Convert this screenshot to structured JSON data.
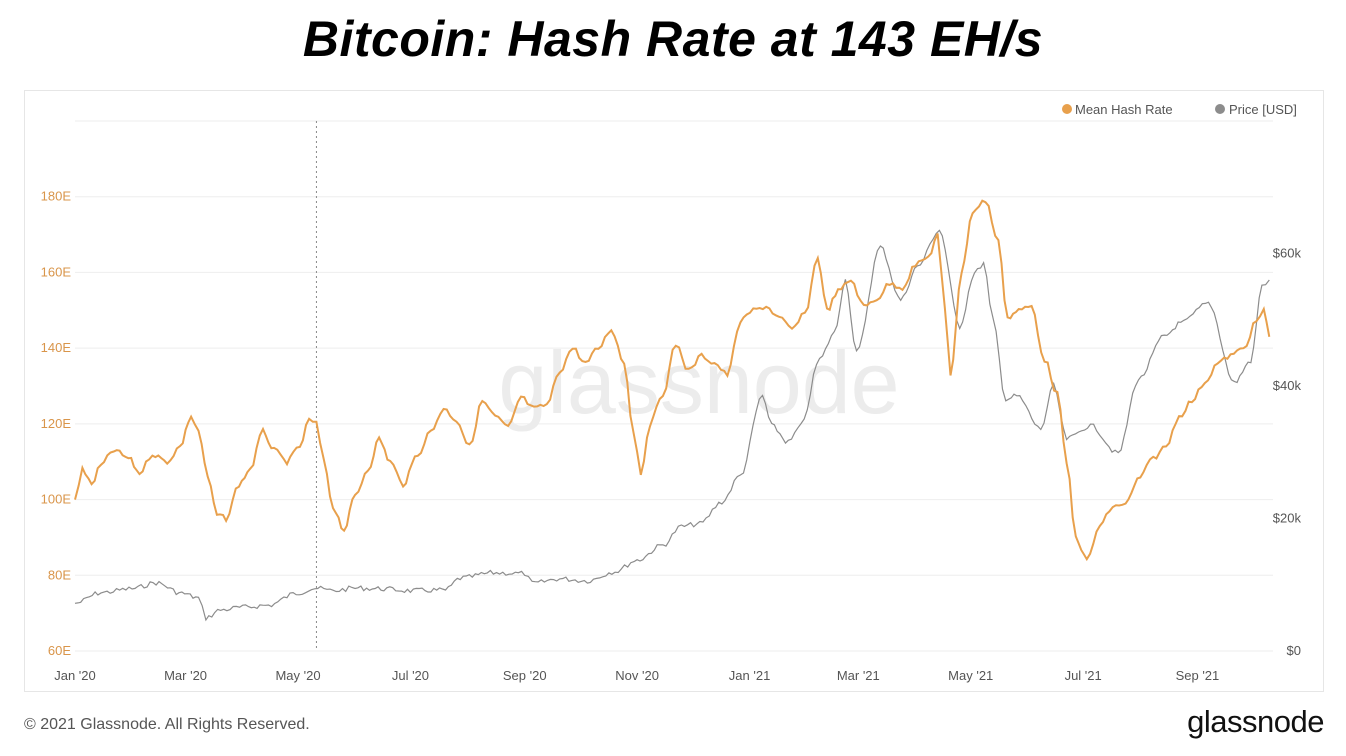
{
  "title": "Bitcoin: Hash Rate at 143 EH/s",
  "footer": "© 2021 Glassnode. All Rights Reserved.",
  "brand": "glassnode",
  "watermark": "glassnode",
  "colors": {
    "hash_rate": "#e8a04c",
    "price": "#8c8c8c",
    "left_axis": "#d9954a",
    "right_axis": "#555555",
    "grid": "#eeeeee"
  },
  "chart_data": {
    "type": "line",
    "title": "Bitcoin: Hash Rate at 143 EH/s",
    "x_ticks": [
      "Jan '20",
      "Mar '20",
      "May '20",
      "Jul '20",
      "Sep '20",
      "Nov '20",
      "Jan '21",
      "Mar '21",
      "May '21",
      "Jul '21",
      "Sep '21"
    ],
    "y_left": {
      "ticks": [
        "60E",
        "80E",
        "100E",
        "120E",
        "140E",
        "160E",
        "180E"
      ],
      "range": [
        60,
        200
      ]
    },
    "y_right": {
      "ticks": [
        "$0",
        "$20k",
        "$40k",
        "$60k"
      ],
      "range": [
        0,
        80000
      ]
    },
    "legend": {
      "position": "top-right",
      "items": [
        "Mean Hash Rate",
        "Price [USD]"
      ]
    },
    "grid": true,
    "marker_date": "2020-05-11",
    "series": [
      {
        "name": "Mean Hash Rate",
        "axis": "left",
        "points": [
          [
            "2020-01-01",
            100
          ],
          [
            "2020-01-05",
            108
          ],
          [
            "2020-01-10",
            104
          ],
          [
            "2020-01-15",
            109
          ],
          [
            "2020-01-22",
            113
          ],
          [
            "2020-01-30",
            111
          ],
          [
            "2020-02-05",
            107
          ],
          [
            "2020-02-12",
            112
          ],
          [
            "2020-02-20",
            110
          ],
          [
            "2020-02-27",
            114
          ],
          [
            "2020-03-04",
            122
          ],
          [
            "2020-03-08",
            118
          ],
          [
            "2020-03-13",
            106
          ],
          [
            "2020-03-18",
            96
          ],
          [
            "2020-03-23",
            95
          ],
          [
            "2020-03-30",
            104
          ],
          [
            "2020-04-05",
            108
          ],
          [
            "2020-04-12",
            118
          ],
          [
            "2020-04-18",
            113
          ],
          [
            "2020-04-25",
            110
          ],
          [
            "2020-05-02",
            114
          ],
          [
            "2020-05-07",
            121
          ],
          [
            "2020-05-11",
            120
          ],
          [
            "2020-05-15",
            110
          ],
          [
            "2020-05-20",
            98
          ],
          [
            "2020-05-26",
            92
          ],
          [
            "2020-06-01",
            101
          ],
          [
            "2020-06-08",
            108
          ],
          [
            "2020-06-14",
            116
          ],
          [
            "2020-06-20",
            110
          ],
          [
            "2020-06-27",
            104
          ],
          [
            "2020-07-05",
            112
          ],
          [
            "2020-07-12",
            118
          ],
          [
            "2020-07-19",
            124
          ],
          [
            "2020-07-26",
            121
          ],
          [
            "2020-08-02",
            114
          ],
          [
            "2020-08-09",
            126
          ],
          [
            "2020-08-16",
            122
          ],
          [
            "2020-08-23",
            119
          ],
          [
            "2020-08-30",
            127
          ],
          [
            "2020-09-06",
            124
          ],
          [
            "2020-09-13",
            125
          ],
          [
            "2020-09-20",
            134
          ],
          [
            "2020-09-27",
            140
          ],
          [
            "2020-10-04",
            136
          ],
          [
            "2020-10-11",
            140
          ],
          [
            "2020-10-18",
            145
          ],
          [
            "2020-10-25",
            136
          ],
          [
            "2020-10-30",
            118
          ],
          [
            "2020-11-03",
            107
          ],
          [
            "2020-11-08",
            120
          ],
          [
            "2020-11-15",
            128
          ],
          [
            "2020-11-22",
            141
          ],
          [
            "2020-11-29",
            134
          ],
          [
            "2020-12-06",
            138
          ],
          [
            "2020-12-13",
            136
          ],
          [
            "2020-12-20",
            133
          ],
          [
            "2020-12-27",
            147
          ],
          [
            "2021-01-03",
            150
          ],
          [
            "2021-01-10",
            151
          ],
          [
            "2021-01-17",
            148
          ],
          [
            "2021-01-24",
            145
          ],
          [
            "2021-01-31",
            149
          ],
          [
            "2021-02-07",
            164
          ],
          [
            "2021-02-12",
            150
          ],
          [
            "2021-02-18",
            155
          ],
          [
            "2021-02-25",
            158
          ],
          [
            "2021-03-04",
            151
          ],
          [
            "2021-03-11",
            153
          ],
          [
            "2021-03-18",
            157
          ],
          [
            "2021-03-25",
            156
          ],
          [
            "2021-04-01",
            162
          ],
          [
            "2021-04-08",
            164
          ],
          [
            "2021-04-13",
            170
          ],
          [
            "2021-04-17",
            150
          ],
          [
            "2021-04-20",
            133
          ],
          [
            "2021-04-26",
            160
          ],
          [
            "2021-05-02",
            176
          ],
          [
            "2021-05-09",
            179
          ],
          [
            "2021-05-16",
            168
          ],
          [
            "2021-05-21",
            148
          ],
          [
            "2021-05-27",
            150
          ],
          [
            "2021-06-03",
            151
          ],
          [
            "2021-06-10",
            137
          ],
          [
            "2021-06-17",
            128
          ],
          [
            "2021-06-22",
            110
          ],
          [
            "2021-06-27",
            90
          ],
          [
            "2021-07-03",
            84
          ],
          [
            "2021-07-10",
            93
          ],
          [
            "2021-07-17",
            98
          ],
          [
            "2021-07-24",
            99
          ],
          [
            "2021-08-01",
            106
          ],
          [
            "2021-08-08",
            111
          ],
          [
            "2021-08-15",
            114
          ],
          [
            "2021-08-22",
            122
          ],
          [
            "2021-08-29",
            126
          ],
          [
            "2021-09-05",
            131
          ],
          [
            "2021-09-12",
            136
          ],
          [
            "2021-09-19",
            138
          ],
          [
            "2021-09-26",
            140
          ],
          [
            "2021-10-03",
            147
          ],
          [
            "2021-10-07",
            150
          ],
          [
            "2021-10-10",
            143
          ]
        ]
      },
      {
        "name": "Price [USD]",
        "axis": "right",
        "points": [
          [
            "2020-01-01",
            7200
          ],
          [
            "2020-01-15",
            8800
          ],
          [
            "2020-02-01",
            9400
          ],
          [
            "2020-02-14",
            10300
          ],
          [
            "2020-02-28",
            8700
          ],
          [
            "2020-03-08",
            8000
          ],
          [
            "2020-03-12",
            5000
          ],
          [
            "2020-03-20",
            6200
          ],
          [
            "2020-04-01",
            6600
          ],
          [
            "2020-04-15",
            6900
          ],
          [
            "2020-04-30",
            8700
          ],
          [
            "2020-05-10",
            9500
          ],
          [
            "2020-05-20",
            9100
          ],
          [
            "2020-06-01",
            9500
          ],
          [
            "2020-06-15",
            9400
          ],
          [
            "2020-07-01",
            9100
          ],
          [
            "2020-07-20",
            9200
          ],
          [
            "2020-07-28",
            11000
          ],
          [
            "2020-08-15",
            11800
          ],
          [
            "2020-09-01",
            11700
          ],
          [
            "2020-09-05",
            10200
          ],
          [
            "2020-09-20",
            10900
          ],
          [
            "2020-10-05",
            10600
          ],
          [
            "2020-10-20",
            12000
          ],
          [
            "2020-11-01",
            13700
          ],
          [
            "2020-11-15",
            16000
          ],
          [
            "2020-11-25",
            18800
          ],
          [
            "2020-12-05",
            19200
          ],
          [
            "2020-12-17",
            22500
          ],
          [
            "2020-12-27",
            26500
          ],
          [
            "2021-01-08",
            38500
          ],
          [
            "2021-01-13",
            34000
          ],
          [
            "2021-01-22",
            31500
          ],
          [
            "2021-01-29",
            34000
          ],
          [
            "2021-02-08",
            44000
          ],
          [
            "2021-02-16",
            48000
          ],
          [
            "2021-02-22",
            56000
          ],
          [
            "2021-02-28",
            45000
          ],
          [
            "2021-03-13",
            61000
          ],
          [
            "2021-03-24",
            53000
          ],
          [
            "2021-04-02",
            58000
          ],
          [
            "2021-04-14",
            63500
          ],
          [
            "2021-04-25",
            49000
          ],
          [
            "2021-05-03",
            57000
          ],
          [
            "2021-05-08",
            58500
          ],
          [
            "2021-05-13",
            50000
          ],
          [
            "2021-05-20",
            38000
          ],
          [
            "2021-05-26",
            38500
          ],
          [
            "2021-06-08",
            33500
          ],
          [
            "2021-06-15",
            40000
          ],
          [
            "2021-06-22",
            32000
          ],
          [
            "2021-07-05",
            34000
          ],
          [
            "2021-07-20",
            29800
          ],
          [
            "2021-07-31",
            41000
          ],
          [
            "2021-08-14",
            47500
          ],
          [
            "2021-08-23",
            49500
          ],
          [
            "2021-09-07",
            52500
          ],
          [
            "2021-09-21",
            40500
          ],
          [
            "2021-09-30",
            43800
          ],
          [
            "2021-10-06",
            55000
          ],
          [
            "2021-10-10",
            56000
          ]
        ]
      }
    ]
  }
}
